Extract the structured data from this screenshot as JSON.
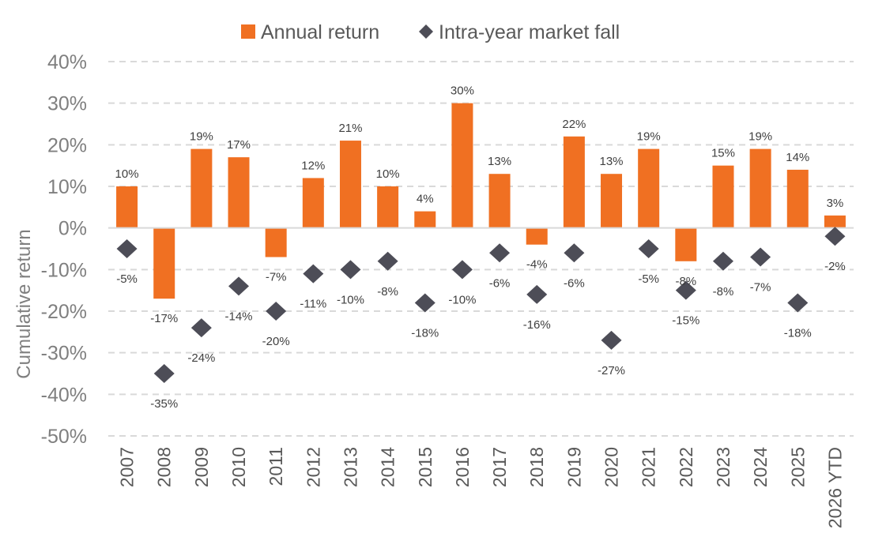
{
  "chart_data": {
    "type": "bar",
    "ylabel": "Cumulative return",
    "ylim": [
      -50,
      40
    ],
    "y_ticks": [
      "40%",
      "30%",
      "20%",
      "10%",
      "0%",
      "-10%",
      "-20%",
      "-30%",
      "-40%",
      "-50%"
    ],
    "y_tick_values": [
      40,
      30,
      20,
      10,
      0,
      -10,
      -20,
      -30,
      -40,
      -50
    ],
    "grid": true,
    "legend_position": "top-center",
    "categories": [
      "2007",
      "2008",
      "2009",
      "2010",
      "2011",
      "2012",
      "2013",
      "2014",
      "2015",
      "2016",
      "2017",
      "2018",
      "2019",
      "2020",
      "2021",
      "2022",
      "2023",
      "2024",
      "2025",
      "2026 YTD"
    ],
    "series": [
      {
        "name": "Annual return",
        "kind": "bar",
        "color": "#f07022",
        "values": [
          10,
          -17,
          19,
          17,
          -7,
          12,
          21,
          10,
          4,
          30,
          13,
          -4,
          22,
          13,
          19,
          -8,
          15,
          19,
          14,
          3
        ],
        "labels": [
          "10%",
          "-17%",
          "19%",
          "17%",
          "-7%",
          "12%",
          "21%",
          "10%",
          "4%",
          "30%",
          "13%",
          "-4%",
          "22%",
          "13%",
          "19%",
          "-8%",
          "15%",
          "19%",
          "14%",
          "3%"
        ]
      },
      {
        "name": "Intra-year market fall",
        "kind": "scatter",
        "marker": "diamond",
        "color": "#4d4d57",
        "values": [
          -5,
          -35,
          -24,
          -14,
          -20,
          -11,
          -10,
          -8,
          -18,
          -10,
          -6,
          -16,
          -6,
          -27,
          -5,
          -15,
          -8,
          -7,
          -18,
          -2
        ],
        "labels": [
          "-5%",
          "-35%",
          "-24%",
          "-14%",
          "-20%",
          "-11%",
          "-10%",
          "-8%",
          "-18%",
          "-10%",
          "-6%",
          "-16%",
          "-6%",
          "-27%",
          "-5%",
          "-15%",
          "-8%",
          "-7%",
          "-18%",
          "-2%"
        ]
      }
    ]
  }
}
